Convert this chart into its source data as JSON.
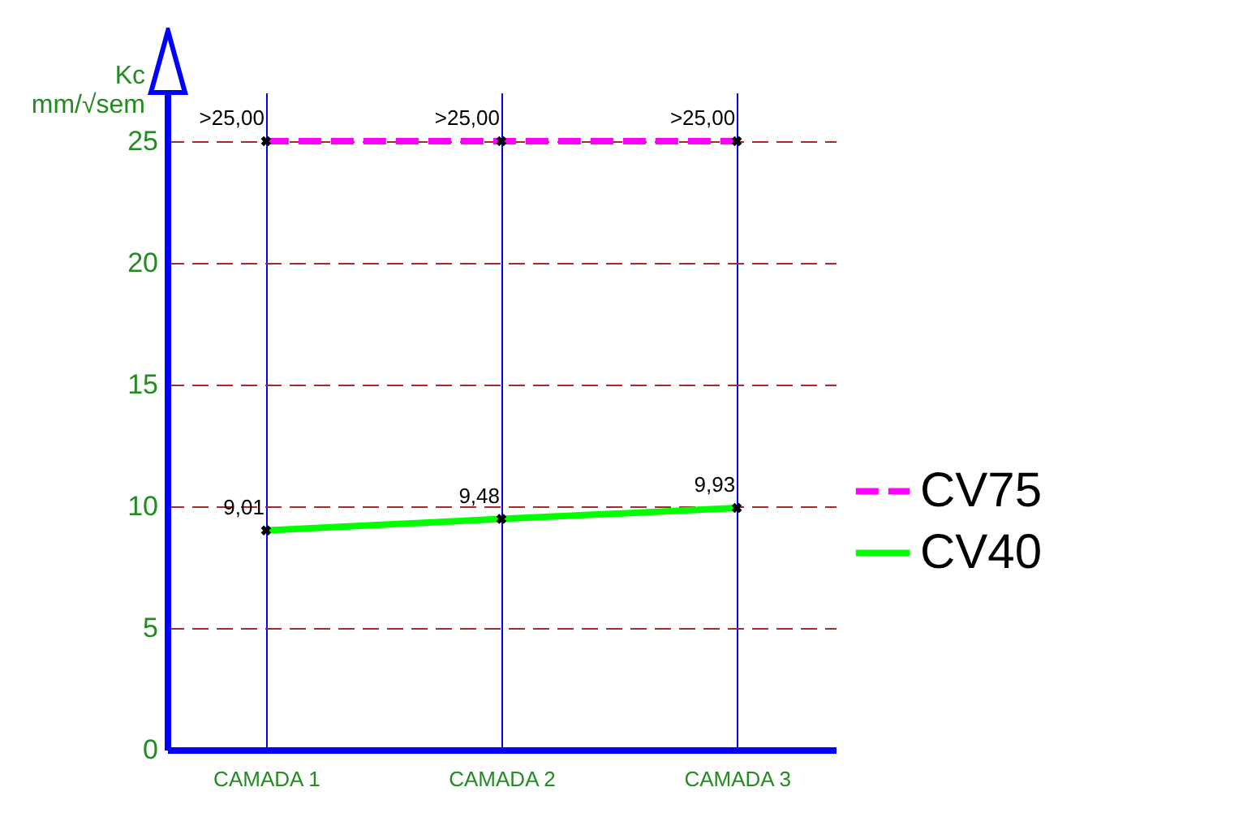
{
  "chart_data": {
    "type": "line",
    "ylabel": "Kc\nmm/√sem",
    "categories": [
      "CAMADA 1",
      "CAMADA 2",
      "CAMADA 3"
    ],
    "series": [
      {
        "name": "CV75",
        "color": "#ff00ff",
        "values": [
          25,
          25,
          25
        ],
        "value_labels": [
          ">25,00",
          ">25,00",
          ">25,00"
        ],
        "line_style": "dashed"
      },
      {
        "name": "CV40",
        "color": "#00ff00",
        "values": [
          9.01,
          9.48,
          9.93
        ],
        "value_labels": [
          "9,01",
          "9,48",
          "9,93"
        ],
        "line_style": "solid"
      }
    ],
    "ylim": [
      0,
      27
    ],
    "yticks": [
      0,
      5,
      10,
      15,
      20,
      25
    ],
    "grid": true,
    "legend": "right",
    "marker": "cross"
  }
}
